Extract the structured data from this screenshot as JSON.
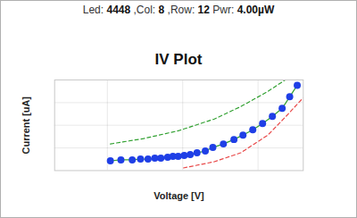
{
  "chart_data": {
    "type": "scatter",
    "header": [
      [
        "Led:",
        "4448"
      ],
      [
        ",Col:",
        "8"
      ],
      [
        ",Row:",
        "12"
      ],
      [
        "Pwr:",
        "4.00µW"
      ]
    ],
    "title": "IV Plot",
    "x_label": "Voltage [V]",
    "y_label": "Current [uA]",
    "xlim": [
      0,
      3.3
    ],
    "ylim": [
      0,
      100
    ],
    "xticks": [
      0.7,
      1.7,
      2.7
    ],
    "yticks": [
      25,
      50,
      75
    ],
    "grid": true,
    "tick_labels": false,
    "series": [
      {
        "type": "line",
        "color": "#30a030",
        "line_style": "dashed",
        "x": [
          0.74,
          1.18,
          1.65,
          2.12,
          2.47,
          2.83,
          3.06
        ],
        "values": [
          29.4,
          35.3,
          44.1,
          56.9,
          70.6,
          87.3,
          100
        ]
      },
      {
        "type": "line",
        "color": "#e84848",
        "line_style": "dashed",
        "x": [
          1.71,
          2.12,
          2.47,
          2.83,
          3.06,
          3.3
        ],
        "values": [
          2.9,
          9.8,
          19.6,
          39.2,
          58.8,
          80.4
        ]
      },
      {
        "type": "line",
        "color": "#30a030",
        "line_style": "solid",
        "x": [
          0.74,
          0.88,
          1.03,
          1.14,
          1.24,
          1.33,
          1.41,
          1.5,
          1.57,
          1.64,
          1.72,
          1.8,
          1.89,
          2.0,
          2.1,
          2.24,
          2.38,
          2.5,
          2.63,
          2.76,
          2.89,
          3.02,
          3.12,
          3.22
        ],
        "values": [
          10.8,
          11.8,
          11.8,
          12.7,
          12.7,
          13.7,
          13.7,
          14.7,
          15.7,
          15.7,
          16.7,
          17.6,
          19.6,
          21.6,
          25.5,
          29.4,
          34.3,
          39.2,
          45.1,
          52.0,
          59.8,
          68.6,
          81.4,
          94.1
        ]
      },
      {
        "type": "scatter",
        "color": "#1f3fe6",
        "marker": "circle",
        "x": [
          0.74,
          0.88,
          1.03,
          1.14,
          1.24,
          1.33,
          1.41,
          1.5,
          1.57,
          1.64,
          1.72,
          1.8,
          1.89,
          2.0,
          2.1,
          2.24,
          2.38,
          2.5,
          2.63,
          2.76,
          2.89,
          3.02,
          3.12,
          3.22
        ],
        "values": [
          10.8,
          11.8,
          11.8,
          12.7,
          12.7,
          13.7,
          13.7,
          14.7,
          15.7,
          15.7,
          16.7,
          17.6,
          19.6,
          21.6,
          25.5,
          29.4,
          34.3,
          39.2,
          45.1,
          52.0,
          59.8,
          68.6,
          81.4,
          94.1
        ]
      }
    ]
  }
}
